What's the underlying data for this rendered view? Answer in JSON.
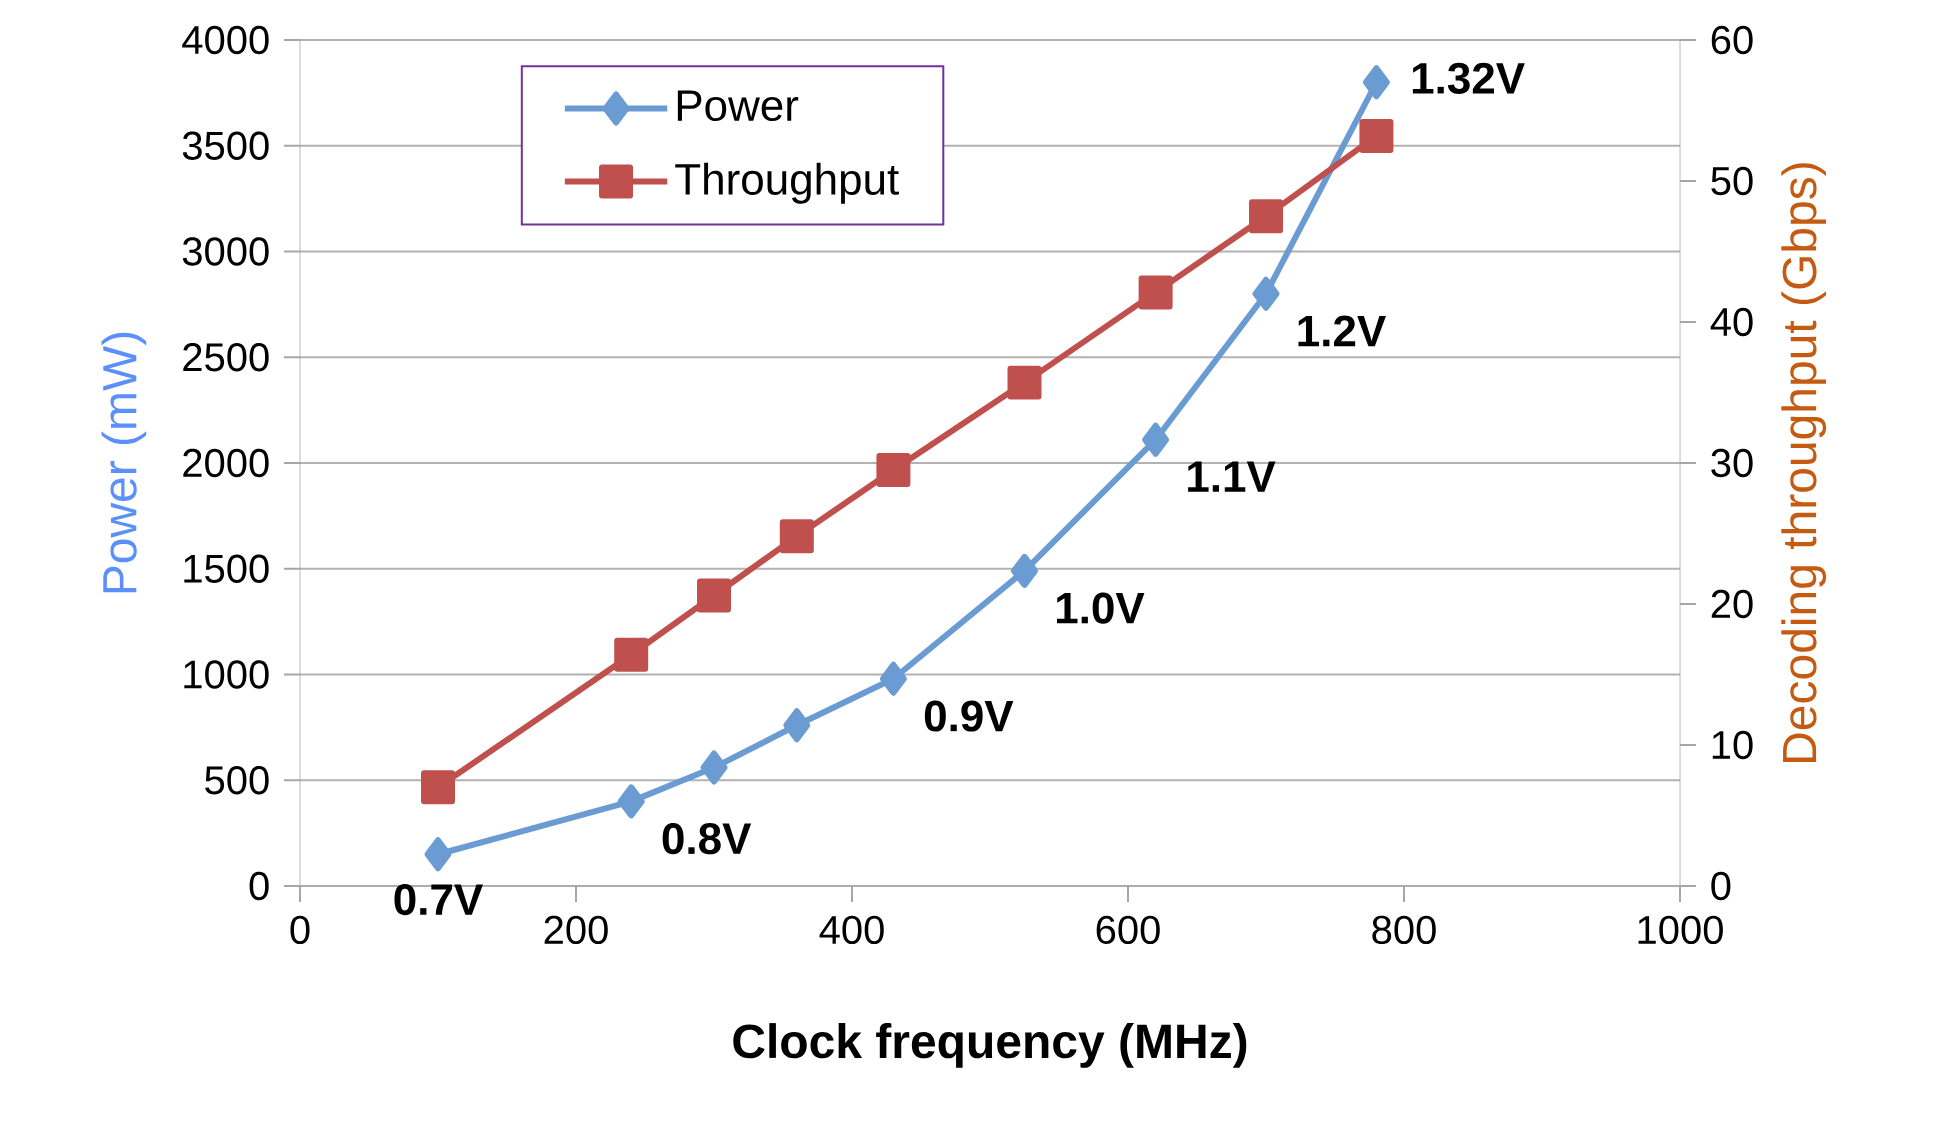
{
  "chart_data": {
    "type": "line",
    "xlabel": "Clock frequency (MHz)",
    "ylabel": "Power (mW)",
    "y2label": "Decoding throughput (Gbps)",
    "series": [
      {
        "name": "Power",
        "color": "#6a9bd3",
        "marker": "diamond",
        "x": [
          100,
          240,
          300,
          360,
          430,
          525,
          620,
          700,
          780
        ],
        "values": [
          150,
          400,
          560,
          760,
          980,
          1490,
          2110,
          2800,
          3800
        ]
      },
      {
        "name": "Throughput",
        "color": "#c0504d",
        "marker": "square",
        "axis": "y2",
        "x": [
          100,
          240,
          300,
          360,
          430,
          525,
          620,
          700,
          780
        ],
        "values": [
          7,
          16.4,
          20.6,
          24.8,
          29.5,
          35.7,
          42.1,
          47.5,
          53.2
        ]
      }
    ],
    "annotations": [
      {
        "text": "0.7V",
        "x": 100,
        "y": 150
      },
      {
        "text": "0.8V",
        "x": 240,
        "y": 400
      },
      {
        "text": "0.9V",
        "x": 430,
        "y": 980
      },
      {
        "text": "1.0V",
        "x": 525,
        "y": 1490
      },
      {
        "text": "1.1V",
        "x": 620,
        "y": 2110
      },
      {
        "text": "1.2V",
        "x": 700,
        "y": 2800
      },
      {
        "text": "1.32V",
        "x": 780,
        "y": 3800
      }
    ],
    "xlim": [
      0,
      1000
    ],
    "xticks": [
      0,
      200,
      400,
      600,
      800,
      1000
    ],
    "ylim": [
      0,
      4000
    ],
    "yticks": [
      0,
      500,
      1000,
      1500,
      2000,
      2500,
      3000,
      3500,
      4000
    ],
    "y2lim": [
      0,
      60
    ],
    "y2ticks": [
      0,
      10,
      20,
      30,
      40,
      50,
      60
    ],
    "grid": "y",
    "legend": "top left"
  }
}
